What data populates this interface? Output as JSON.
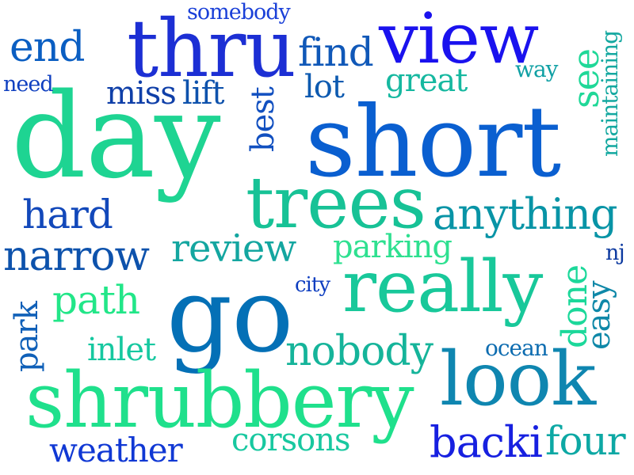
{
  "words": [
    {
      "key": "day",
      "text": "day",
      "color": "#1ed492"
    },
    {
      "key": "short",
      "text": "short",
      "color": "#0a5fd0"
    },
    {
      "key": "go",
      "text": "go",
      "color": "#0470b6"
    },
    {
      "key": "shrubbery",
      "text": "shrubbery",
      "color": "#1fe08c"
    },
    {
      "key": "thru",
      "text": "thru",
      "color": "#1c2fd4"
    },
    {
      "key": "view",
      "text": "view",
      "color": "#1a12ee"
    },
    {
      "key": "trees",
      "text": "trees",
      "color": "#17c296"
    },
    {
      "key": "really",
      "text": "really",
      "color": "#18c89a"
    },
    {
      "key": "look",
      "text": "look",
      "color": "#0f86b0"
    },
    {
      "key": "anything",
      "text": "anything",
      "color": "#0894a6"
    },
    {
      "key": "narrow",
      "text": "narrow",
      "color": "#0d52ac"
    },
    {
      "key": "nobody",
      "text": "nobody",
      "color": "#15b49a"
    },
    {
      "key": "backi",
      "text": "backi",
      "color": "#1720e0"
    },
    {
      "key": "four",
      "text": "four",
      "color": "#0da8a4"
    },
    {
      "key": "end",
      "text": "end",
      "color": "#0a5ec2"
    },
    {
      "key": "find",
      "text": "find",
      "color": "#1058b8"
    },
    {
      "key": "hard",
      "text": "hard",
      "color": "#1248ba"
    },
    {
      "key": "review",
      "text": "review",
      "color": "#14a6a0"
    },
    {
      "key": "path",
      "text": "path",
      "color": "#22e688"
    },
    {
      "key": "weather",
      "text": "weather",
      "color": "#1038d4"
    },
    {
      "key": "corsons",
      "text": "corsons",
      "color": "#18c8a0"
    },
    {
      "key": "miss",
      "text": "miss",
      "color": "#0f3fa8"
    },
    {
      "key": "lift",
      "text": "lift",
      "color": "#0e52ac"
    },
    {
      "key": "lot",
      "text": "lot",
      "color": "#0d5ab0"
    },
    {
      "key": "great",
      "text": "great",
      "color": "#16b8a0"
    },
    {
      "key": "inlet",
      "text": "inlet",
      "color": "#16c8a0"
    },
    {
      "key": "parking",
      "text": "parking",
      "color": "#2ee090"
    },
    {
      "key": "see",
      "text": "see",
      "color": "#20d898"
    },
    {
      "key": "best",
      "text": "best",
      "color": "#1250c0"
    },
    {
      "key": "done",
      "text": "done",
      "color": "#1cd89a"
    },
    {
      "key": "easy",
      "text": "easy",
      "color": "#0f88a8"
    },
    {
      "key": "park",
      "text": "park",
      "color": "#1060b8"
    },
    {
      "key": "maintaining",
      "text": "maintaining",
      "color": "#14a8a0"
    },
    {
      "key": "somebody",
      "text": "somebody",
      "color": "#1a40d8"
    },
    {
      "key": "need",
      "text": "need",
      "color": "#1040c0"
    },
    {
      "key": "way",
      "text": "way",
      "color": "#10a0a4"
    },
    {
      "key": "city",
      "text": "city",
      "color": "#0e3ec0"
    },
    {
      "key": "ocean",
      "text": "ocean",
      "color": "#0d6cb0"
    },
    {
      "key": "nj",
      "text": "nj",
      "color": "#0d3aa0"
    }
  ]
}
